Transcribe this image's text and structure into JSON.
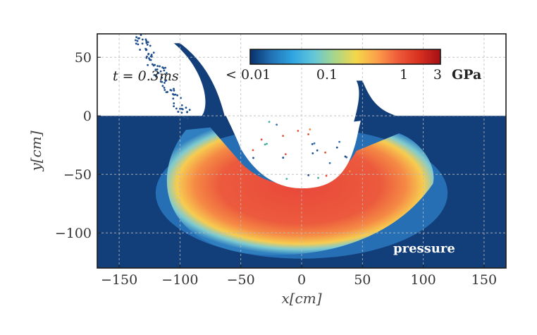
{
  "chart_data": {
    "type": "heatmap",
    "title": "",
    "xlabel": "x[cm]",
    "ylabel": "y[cm]",
    "xlim": [
      -168,
      168
    ],
    "ylim": [
      -130,
      70
    ],
    "xticks": [
      -150,
      -100,
      -50,
      0,
      50,
      100,
      150
    ],
    "xtick_labels": [
      "−150",
      "−100",
      "−50",
      "0",
      "50",
      "100",
      "150"
    ],
    "yticks": [
      50,
      0,
      -50,
      -100
    ],
    "ytick_labels": [
      "50",
      "0",
      "−50",
      "−100"
    ],
    "grid": true,
    "annotation": "t = 0.3ms",
    "field_label": "pressure",
    "colorbar": {
      "scale": "log",
      "unit": "GPa",
      "ticks": [
        0.01,
        0.1,
        1,
        3
      ],
      "tick_labels": [
        "< 0.01",
        "0.1",
        "1",
        "3"
      ],
      "colors": [
        "#08306b",
        "#2171b5",
        "#2fa4e0",
        "#62c7d9",
        "#a8d68a",
        "#f5d74a",
        "#fba04a",
        "#ee5a3a",
        "#d7301f",
        "#a50f15"
      ]
    },
    "surface_y": 0,
    "crater": {
      "center_x": 0,
      "bottom_y": -62,
      "half_width": 55
    },
    "pressure_regions": [
      {
        "region": "background medium",
        "pressure_gpa": 0.01
      },
      {
        "region": "shock shell core",
        "pressure_gpa": 3
      },
      {
        "region": "shock shell edge",
        "pressure_gpa": 0.3
      }
    ]
  }
}
